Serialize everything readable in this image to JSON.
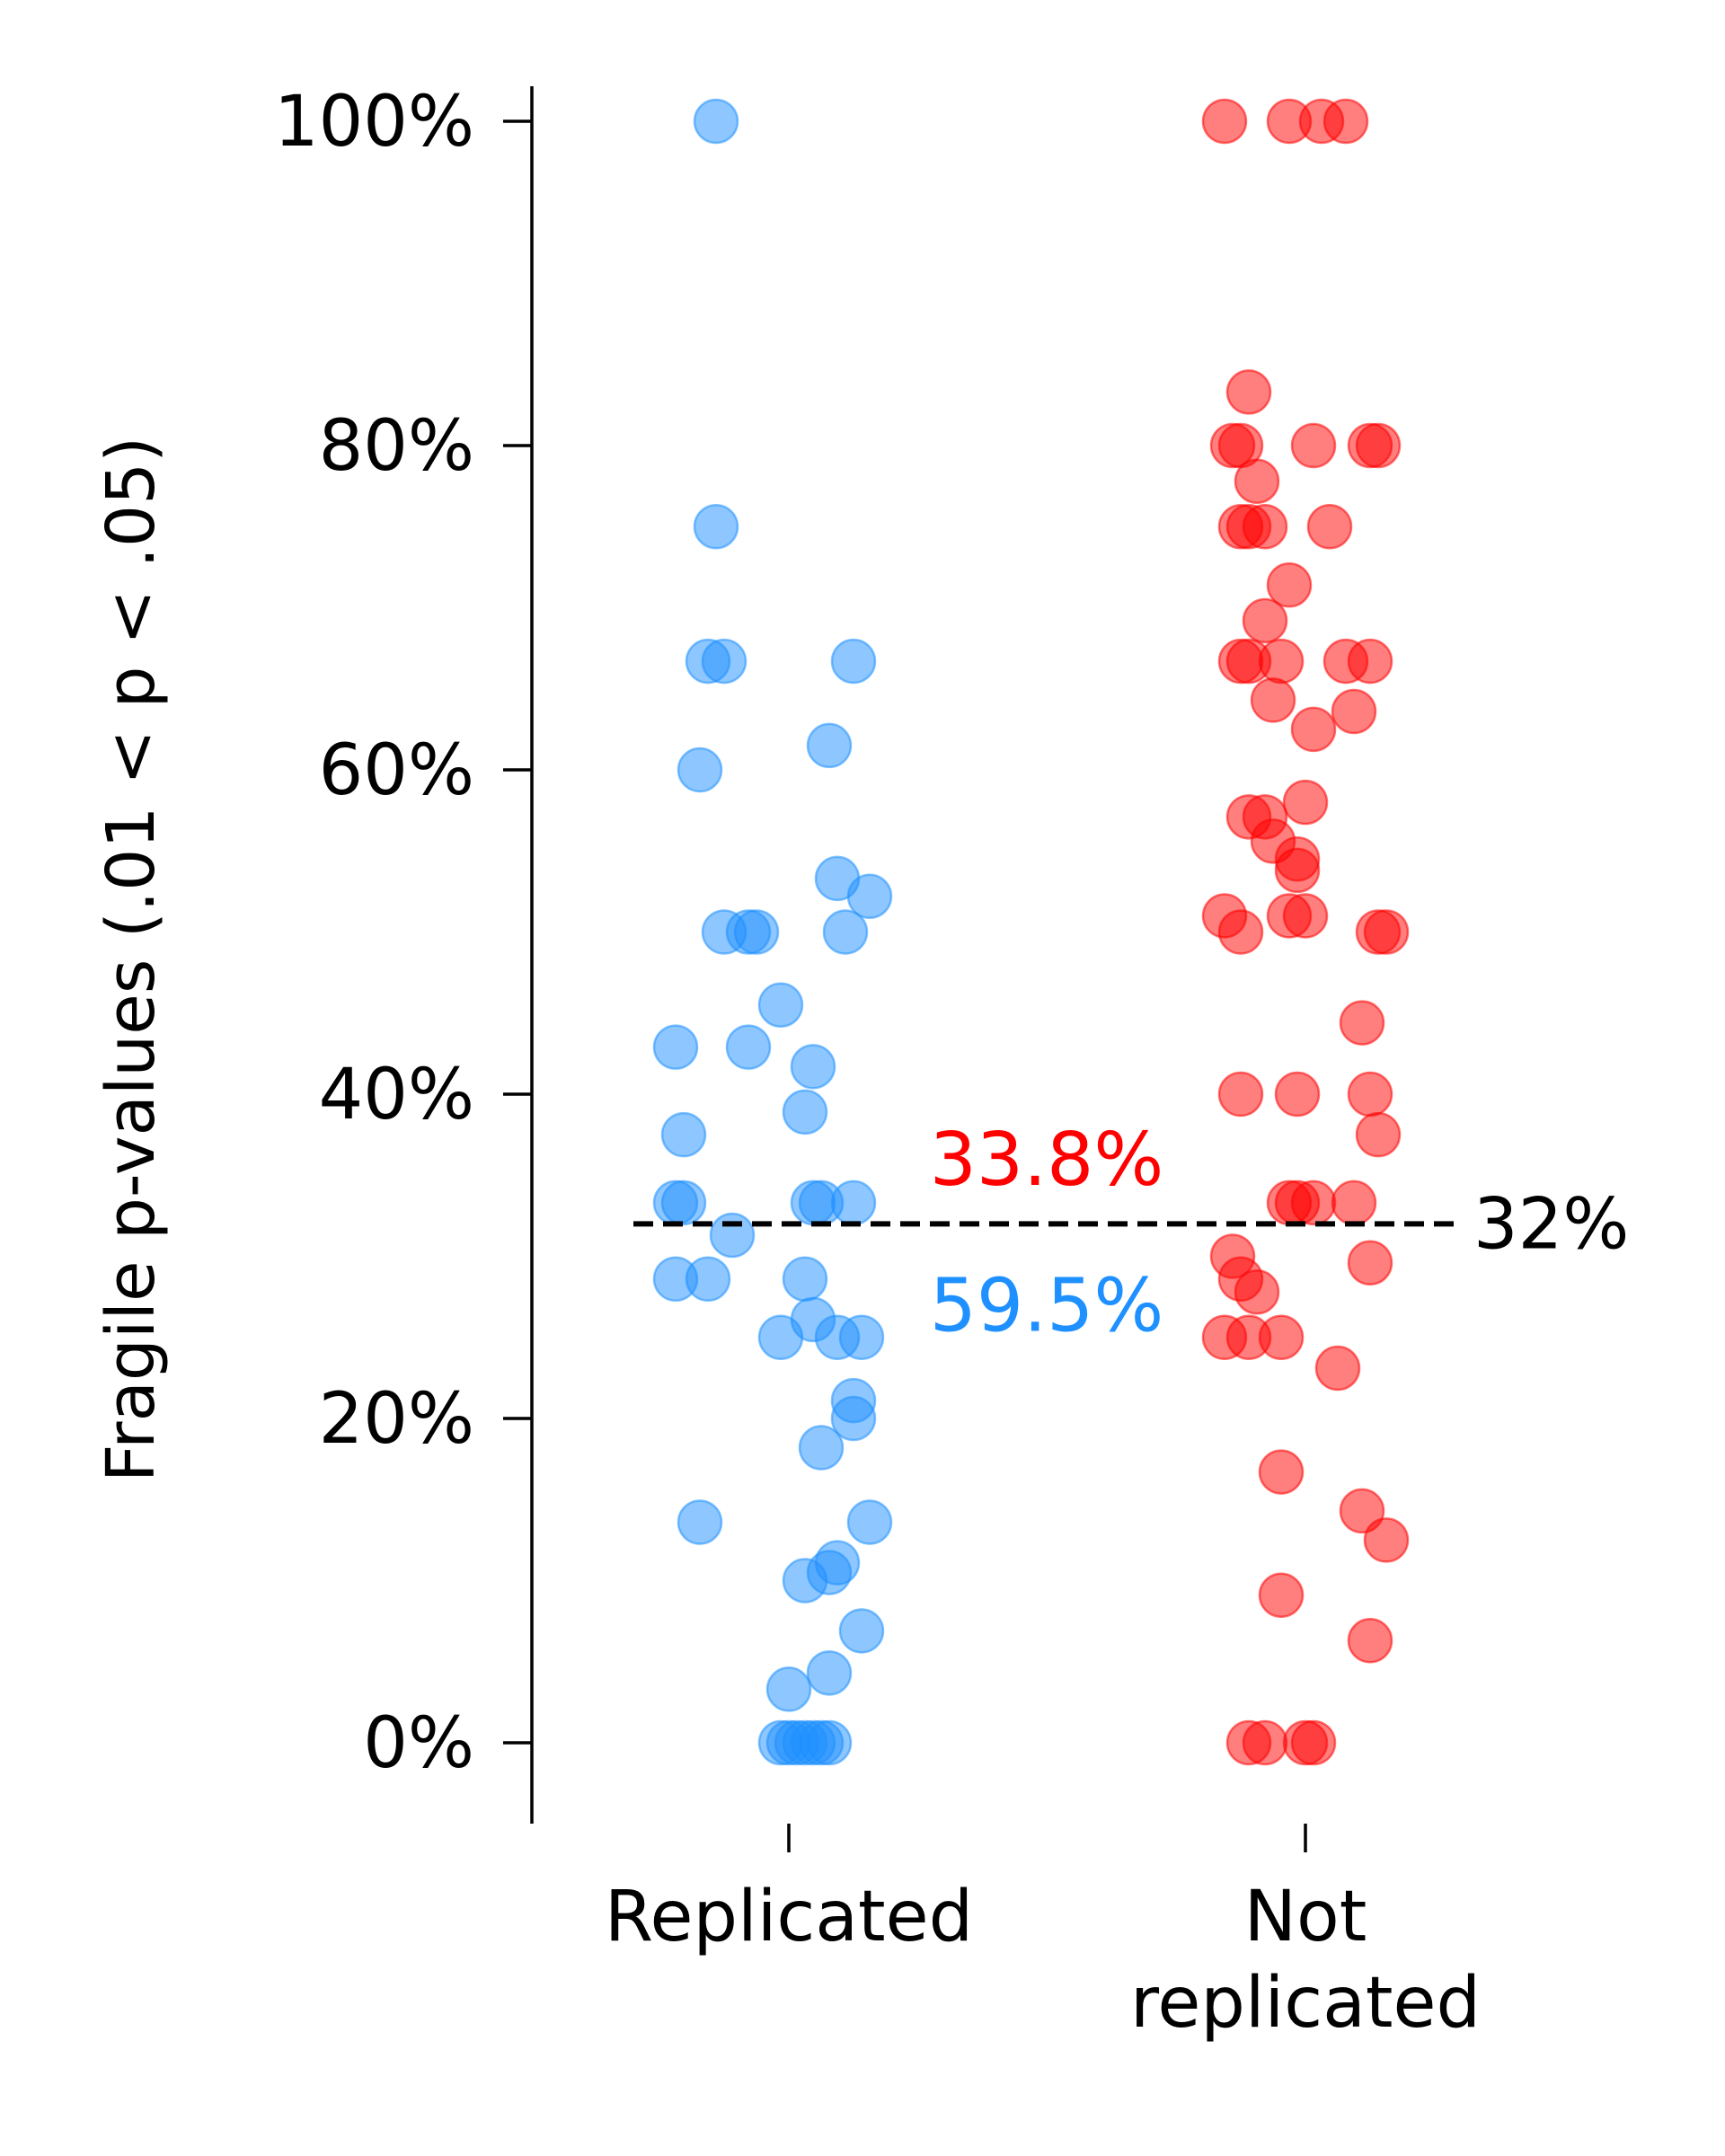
{
  "chart_data": {
    "type": "scatter",
    "ylabel": "Fragile p-values (.01 < p < .05)",
    "xlabel": "",
    "categories": [
      "Replicated",
      "Not\nreplicated"
    ],
    "ylim": [
      -5,
      102
    ],
    "yticks": [
      0,
      20,
      40,
      60,
      80,
      100
    ],
    "ytick_labels": [
      "0%",
      "20%",
      "40%",
      "60%",
      "80%",
      "100%"
    ],
    "grid": false,
    "legend": "none",
    "reference_line": {
      "y": 32,
      "label": "32%",
      "style": "dashed",
      "color": "#000000"
    },
    "annotations": [
      {
        "text": "33.8%",
        "color": "#ff0000",
        "y": 36
      },
      {
        "text": "59.5%",
        "color": "#1e90ff",
        "y": 27
      }
    ],
    "series": [
      {
        "category": "Replicated",
        "color": "#1e90ff",
        "points": [
          {
            "j": -0.09,
            "v": 100
          },
          {
            "j": -0.09,
            "v": 75
          },
          {
            "j": -0.1,
            "v": 66.7
          },
          {
            "j": -0.08,
            "v": 66.7
          },
          {
            "j": 0.08,
            "v": 66.7
          },
          {
            "j": -0.11,
            "v": 60
          },
          {
            "j": 0.05,
            "v": 61.5
          },
          {
            "j": 0.06,
            "v": 53.3
          },
          {
            "j": 0.1,
            "v": 52.2
          },
          {
            "j": -0.08,
            "v": 50
          },
          {
            "j": -0.05,
            "v": 50
          },
          {
            "j": -0.04,
            "v": 50
          },
          {
            "j": 0.07,
            "v": 50
          },
          {
            "j": -0.01,
            "v": 45.5
          },
          {
            "j": -0.14,
            "v": 42.9
          },
          {
            "j": -0.05,
            "v": 42.9
          },
          {
            "j": 0.03,
            "v": 41.7
          },
          {
            "j": 0.02,
            "v": 38.9
          },
          {
            "j": -0.13,
            "v": 37.5
          },
          {
            "j": -0.14,
            "v": 33.3
          },
          {
            "j": -0.13,
            "v": 33.3
          },
          {
            "j": 0.03,
            "v": 33.3
          },
          {
            "j": 0.04,
            "v": 33.3
          },
          {
            "j": 0.08,
            "v": 33.3
          },
          {
            "j": -0.07,
            "v": 31.3
          },
          {
            "j": -0.14,
            "v": 28.6
          },
          {
            "j": -0.1,
            "v": 28.6
          },
          {
            "j": 0.02,
            "v": 28.6
          },
          {
            "j": 0.03,
            "v": 26.1
          },
          {
            "j": -0.01,
            "v": 25
          },
          {
            "j": 0.06,
            "v": 25
          },
          {
            "j": 0.09,
            "v": 25
          },
          {
            "j": 0.08,
            "v": 21.1
          },
          {
            "j": 0.08,
            "v": 20
          },
          {
            "j": 0.04,
            "v": 18.2
          },
          {
            "j": -0.11,
            "v": 13.6
          },
          {
            "j": 0.1,
            "v": 13.6
          },
          {
            "j": 0.06,
            "v": 11.1
          },
          {
            "j": 0.05,
            "v": 10.5
          },
          {
            "j": 0.02,
            "v": 10
          },
          {
            "j": 0.09,
            "v": 6.9
          },
          {
            "j": 0.05,
            "v": 4.3
          },
          {
            "j": 0.0,
            "v": 3.3
          },
          {
            "j": -0.01,
            "v": 0
          },
          {
            "j": 0.0,
            "v": 0
          },
          {
            "j": 0.01,
            "v": 0
          },
          {
            "j": 0.02,
            "v": 0
          },
          {
            "j": 0.03,
            "v": 0
          },
          {
            "j": 0.04,
            "v": 0
          },
          {
            "j": 0.05,
            "v": 0
          }
        ]
      },
      {
        "category": "Not replicated",
        "color": "#ff0000",
        "points": [
          {
            "j": -0.1,
            "v": 100
          },
          {
            "j": -0.02,
            "v": 100
          },
          {
            "j": 0.02,
            "v": 100
          },
          {
            "j": 0.05,
            "v": 100
          },
          {
            "j": -0.07,
            "v": 83.3
          },
          {
            "j": -0.09,
            "v": 80
          },
          {
            "j": -0.08,
            "v": 80
          },
          {
            "j": 0.01,
            "v": 80
          },
          {
            "j": 0.08,
            "v": 80
          },
          {
            "j": 0.09,
            "v": 80
          },
          {
            "j": -0.06,
            "v": 77.8
          },
          {
            "j": -0.08,
            "v": 75
          },
          {
            "j": -0.07,
            "v": 75
          },
          {
            "j": -0.05,
            "v": 75
          },
          {
            "j": 0.03,
            "v": 75
          },
          {
            "j": -0.02,
            "v": 71.4
          },
          {
            "j": -0.05,
            "v": 69.2
          },
          {
            "j": -0.08,
            "v": 66.7
          },
          {
            "j": -0.07,
            "v": 66.7
          },
          {
            "j": -0.03,
            "v": 66.7
          },
          {
            "j": 0.05,
            "v": 66.7
          },
          {
            "j": 0.08,
            "v": 66.7
          },
          {
            "j": -0.04,
            "v": 64.3
          },
          {
            "j": 0.06,
            "v": 63.6
          },
          {
            "j": 0.01,
            "v": 62.5
          },
          {
            "j": -0.07,
            "v": 57.1
          },
          {
            "j": -0.05,
            "v": 57.1
          },
          {
            "j": 0.0,
            "v": 58
          },
          {
            "j": -0.04,
            "v": 55.6
          },
          {
            "j": -0.01,
            "v": 54.5
          },
          {
            "j": -0.01,
            "v": 53.8
          },
          {
            "j": -0.1,
            "v": 51
          },
          {
            "j": -0.08,
            "v": 50
          },
          {
            "j": -0.02,
            "v": 51
          },
          {
            "j": 0.0,
            "v": 51
          },
          {
            "j": 0.09,
            "v": 50
          },
          {
            "j": 0.1,
            "v": 50
          },
          {
            "j": 0.07,
            "v": 44.4
          },
          {
            "j": -0.08,
            "v": 40
          },
          {
            "j": -0.01,
            "v": 40
          },
          {
            "j": 0.08,
            "v": 40
          },
          {
            "j": 0.09,
            "v": 37.5
          },
          {
            "j": -0.02,
            "v": 33.3
          },
          {
            "j": -0.01,
            "v": 33.3
          },
          {
            "j": 0.01,
            "v": 33.3
          },
          {
            "j": 0.06,
            "v": 33.3
          },
          {
            "j": -0.09,
            "v": 30
          },
          {
            "j": 0.08,
            "v": 29.6
          },
          {
            "j": -0.08,
            "v": 28.6
          },
          {
            "j": -0.06,
            "v": 27.8
          },
          {
            "j": -0.1,
            "v": 25
          },
          {
            "j": -0.07,
            "v": 25
          },
          {
            "j": -0.03,
            "v": 25
          },
          {
            "j": 0.04,
            "v": 23.1
          },
          {
            "j": -0.03,
            "v": 16.7
          },
          {
            "j": 0.07,
            "v": 14.3
          },
          {
            "j": 0.1,
            "v": 12.5
          },
          {
            "j": -0.03,
            "v": 9.1
          },
          {
            "j": 0.08,
            "v": 6.3
          },
          {
            "j": -0.07,
            "v": 0
          },
          {
            "j": -0.05,
            "v": 0
          },
          {
            "j": 0.0,
            "v": 0
          },
          {
            "j": 0.01,
            "v": 0
          }
        ]
      }
    ]
  }
}
